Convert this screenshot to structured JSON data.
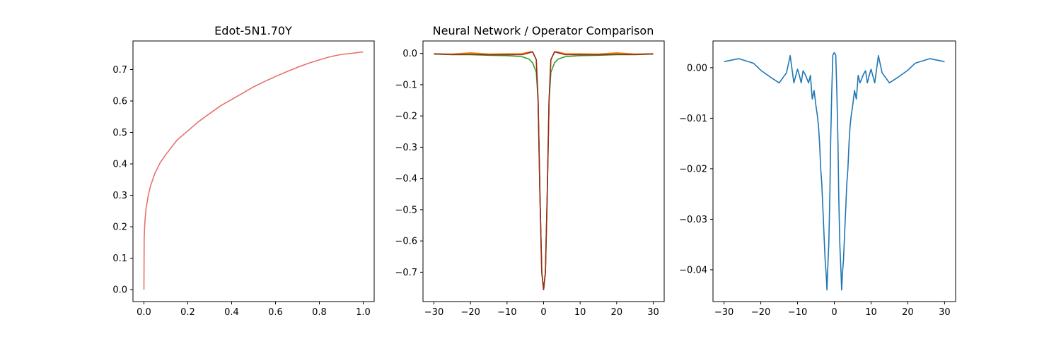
{
  "chart_data": [
    {
      "type": "line",
      "title": "Edot-5N1.70Y",
      "xlim": [
        -0.05,
        1.05
      ],
      "ylim": [
        -0.038,
        0.791
      ],
      "xticks": [
        0.0,
        0.2,
        0.4,
        0.6,
        0.8,
        1.0
      ],
      "xtick_labels": [
        "0.0",
        "0.2",
        "0.4",
        "0.6",
        "0.8",
        "1.0"
      ],
      "yticks": [
        0.0,
        0.1,
        0.2,
        0.3,
        0.4,
        0.5,
        0.6,
        0.7
      ],
      "ytick_labels": [
        "0.0",
        "0.1",
        "0.2",
        "0.3",
        "0.4",
        "0.5",
        "0.6",
        "0.7"
      ],
      "grid": false,
      "series": [
        {
          "color": "#e8706b",
          "x": [
            0.0,
            0.001,
            0.003,
            0.006,
            0.01,
            0.02,
            0.03,
            0.05,
            0.075,
            0.1,
            0.15,
            0.2,
            0.25,
            0.3,
            0.35,
            0.4,
            0.45,
            0.5,
            0.55,
            0.6,
            0.65,
            0.7,
            0.75,
            0.8,
            0.85,
            0.9,
            0.95,
            1.0
          ],
          "values": [
            0.0,
            0.16,
            0.2,
            0.23,
            0.26,
            0.3,
            0.33,
            0.37,
            0.405,
            0.43,
            0.475,
            0.505,
            0.535,
            0.56,
            0.585,
            0.605,
            0.625,
            0.645,
            0.662,
            0.678,
            0.693,
            0.707,
            0.72,
            0.731,
            0.741,
            0.748,
            0.752,
            0.756
          ]
        }
      ]
    },
    {
      "type": "line",
      "title": "Neural Network / Operator Comparison",
      "xlim": [
        -33,
        33
      ],
      "ylim": [
        -0.794,
        0.04
      ],
      "xticks": [
        -30,
        -20,
        -10,
        0,
        10,
        20,
        30
      ],
      "xtick_labels": [
        "−30",
        "−20",
        "−10",
        "0",
        "10",
        "20",
        "30"
      ],
      "yticks": [
        0.0,
        -0.1,
        -0.2,
        -0.3,
        -0.4,
        -0.5,
        -0.6,
        -0.7
      ],
      "ytick_labels": [
        "0.0",
        "−0.1",
        "−0.2",
        "−0.3",
        "−0.4",
        "−0.5",
        "−0.6",
        "−0.7"
      ],
      "grid": false,
      "series": [
        {
          "color": "#ff7f0e",
          "x": [
            -30,
            -25,
            -20,
            -15,
            -10,
            -6,
            -4,
            -3,
            -2,
            -1.5,
            -1,
            -0.5,
            0,
            0.5,
            1,
            1.5,
            2,
            3,
            4,
            6,
            10,
            15,
            20,
            25,
            30
          ],
          "values": [
            -0.001,
            -0.002,
            0.002,
            -0.002,
            -0.001,
            -0.001,
            0.005,
            0.006,
            -0.02,
            -0.15,
            -0.45,
            -0.7,
            -0.756,
            -0.7,
            -0.45,
            -0.15,
            -0.02,
            0.006,
            0.005,
            -0.001,
            -0.001,
            -0.002,
            0.002,
            -0.002,
            -0.001
          ]
        },
        {
          "color": "#2ca02c",
          "x": [
            -30,
            -25,
            -20,
            -15,
            -10,
            -6,
            -4,
            -3,
            -2.5,
            -2,
            -1.5,
            -1,
            -0.5,
            0,
            0.5,
            1,
            1.5,
            2,
            2.5,
            3,
            4,
            6,
            10,
            15,
            20,
            25,
            30
          ],
          "values": [
            -0.002,
            -0.004,
            -0.004,
            -0.006,
            -0.007,
            -0.01,
            -0.018,
            -0.03,
            -0.045,
            -0.06,
            -0.15,
            -0.45,
            -0.7,
            -0.756,
            -0.7,
            -0.45,
            -0.15,
            -0.06,
            -0.045,
            -0.03,
            -0.018,
            -0.01,
            -0.007,
            -0.006,
            -0.004,
            -0.004,
            -0.002
          ]
        },
        {
          "color": "#9b2a1c",
          "x": [
            -30,
            -25,
            -20,
            -15,
            -10,
            -6,
            -4,
            -3,
            -2,
            -1.5,
            -1,
            -0.5,
            0,
            0.5,
            1,
            1.5,
            2,
            3,
            4,
            6,
            10,
            15,
            20,
            25,
            30
          ],
          "values": [
            -0.001,
            -0.003,
            -0.002,
            -0.004,
            -0.004,
            -0.004,
            0.002,
            0.005,
            -0.02,
            -0.15,
            -0.45,
            -0.7,
            -0.756,
            -0.7,
            -0.45,
            -0.15,
            -0.02,
            0.005,
            0.002,
            -0.004,
            -0.004,
            -0.004,
            -0.002,
            -0.003,
            -0.001
          ]
        }
      ]
    },
    {
      "type": "line",
      "title": "",
      "xlim": [
        -33,
        33
      ],
      "ylim": [
        -0.0463,
        0.0053
      ],
      "xticks": [
        -30,
        -20,
        -10,
        0,
        10,
        20,
        30
      ],
      "xtick_labels": [
        "−30",
        "−20",
        "−10",
        "0",
        "10",
        "20",
        "30"
      ],
      "yticks": [
        0.0,
        -0.01,
        -0.02,
        -0.03,
        -0.04
      ],
      "ytick_labels": [
        "0.00",
        "−0.01",
        "−0.02",
        "−0.03",
        "−0.04"
      ],
      "grid": false,
      "series": [
        {
          "color": "#1f77b4",
          "x": [
            -30,
            -26,
            -22,
            -20,
            -17.5,
            -15,
            -13,
            -12,
            -11,
            -10,
            -9.5,
            -9,
            -8.5,
            -8,
            -7,
            -6.5,
            -6,
            -5.5,
            -5,
            -4.6,
            -4.3,
            -4,
            -3.7,
            -3.4,
            -3.1,
            -2.8,
            -2.5,
            -2.2,
            -2.0,
            -1.8,
            -1.5,
            -1.2,
            -1.0,
            -0.7,
            -0.4,
            0,
            0.4,
            0.7,
            1.0,
            1.2,
            1.5,
            1.8,
            2.0,
            2.2,
            2.5,
            2.8,
            3.1,
            3.4,
            3.7,
            4.0,
            4.3,
            4.6,
            5.0,
            5.5,
            6.0,
            6.5,
            7.0,
            8.0,
            8.5,
            9.0,
            9.5,
            10,
            11,
            12,
            13,
            15,
            17.5,
            20,
            22,
            26,
            30
          ],
          "values": [
            0.0012,
            0.0018,
            0.0009,
            -0.0005,
            -0.0018,
            -0.003,
            -0.001,
            0.0024,
            -0.003,
            -0.0003,
            -0.0015,
            -0.003,
            -0.0006,
            -0.0012,
            -0.003,
            -0.0015,
            -0.0062,
            -0.0045,
            -0.0075,
            -0.0095,
            -0.0115,
            -0.015,
            -0.02,
            -0.023,
            -0.028,
            -0.033,
            -0.038,
            -0.041,
            -0.044,
            -0.04,
            -0.035,
            -0.025,
            -0.015,
            -0.005,
            0.0025,
            0.003,
            0.0025,
            -0.005,
            -0.015,
            -0.025,
            -0.035,
            -0.04,
            -0.044,
            -0.041,
            -0.038,
            -0.033,
            -0.028,
            -0.023,
            -0.02,
            -0.015,
            -0.0115,
            -0.0095,
            -0.0075,
            -0.0045,
            -0.0062,
            -0.0015,
            -0.003,
            -0.0012,
            -0.0006,
            -0.003,
            -0.0015,
            -0.0003,
            -0.003,
            0.0024,
            -0.001,
            -0.003,
            -0.0018,
            -0.0005,
            0.0009,
            0.0018,
            0.0012
          ]
        }
      ]
    }
  ]
}
